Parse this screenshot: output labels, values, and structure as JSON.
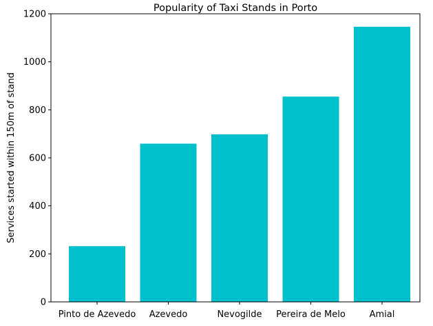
{
  "chart_data": {
    "type": "bar",
    "title": "Popularity of Taxi Stands in Porto",
    "xlabel": "",
    "ylabel": "Services started within 150m of stand",
    "categories": [
      "Pinto de Azevedo",
      "Azevedo",
      "Nevogilde",
      "Pereira de Melo",
      "Amial"
    ],
    "values": [
      232,
      659,
      698,
      855,
      1146
    ],
    "ylim": [
      0,
      1200
    ],
    "yticks": [
      0,
      200,
      400,
      600,
      800,
      1000,
      1200
    ],
    "bar_color": "#00c0cc",
    "grid": false,
    "legend": "none"
  }
}
